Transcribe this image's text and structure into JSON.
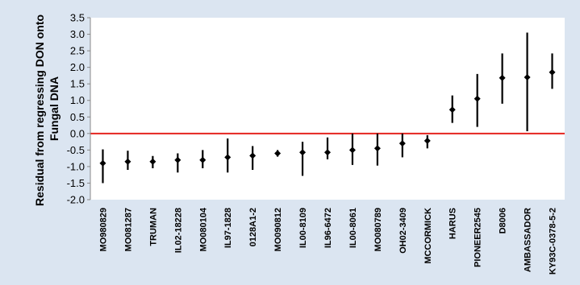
{
  "chart_data": {
    "type": "scatter",
    "title": "",
    "xlabel": "",
    "ylabel": [
      "Residual from regressing DON onto",
      "Fungal DNA"
    ],
    "ylim": [
      -2.0,
      3.5
    ],
    "ytick_step": 0.5,
    "grid": false,
    "legend": "none",
    "categories": [
      "MO980829",
      "MO081287",
      "TRUMAN",
      "IL02-18228",
      "MO080104",
      "IL97-1828",
      "0128A1-2",
      "MO090812",
      "IL00-8109",
      "IL96-6472",
      "IL00-8061",
      "MO080789",
      "OH02-3409",
      "MCCORMICK",
      "HARUS",
      "PIONEER2545",
      "D8006",
      "AMBASSADOR",
      "KY93C-0378-5-2"
    ],
    "values": [
      -0.9,
      -0.85,
      -0.85,
      -0.8,
      -0.8,
      -0.72,
      -0.67,
      -0.6,
      -0.57,
      -0.57,
      -0.5,
      -0.45,
      -0.3,
      -0.22,
      0.72,
      1.05,
      1.68,
      1.7,
      1.85
    ],
    "lower": [
      -1.5,
      -1.1,
      -1.05,
      -1.18,
      -1.05,
      -1.18,
      -1.1,
      -0.7,
      -1.28,
      -0.78,
      -0.95,
      -0.97,
      -0.72,
      -0.45,
      0.32,
      0.2,
      0.9,
      0.07,
      1.35
    ],
    "upper": [
      -0.48,
      -0.52,
      -0.68,
      -0.6,
      -0.5,
      -0.15,
      -0.38,
      -0.5,
      -0.25,
      -0.12,
      0.0,
      0.0,
      0.0,
      -0.05,
      1.15,
      1.8,
      2.42,
      3.05,
      2.42
    ],
    "reference_line": {
      "y": 0.0,
      "color": "#e52420"
    },
    "colors": {
      "background": "#dbe5f1",
      "plot_area": "#ffffff",
      "marker": "#000000",
      "axis": "#888888"
    }
  }
}
